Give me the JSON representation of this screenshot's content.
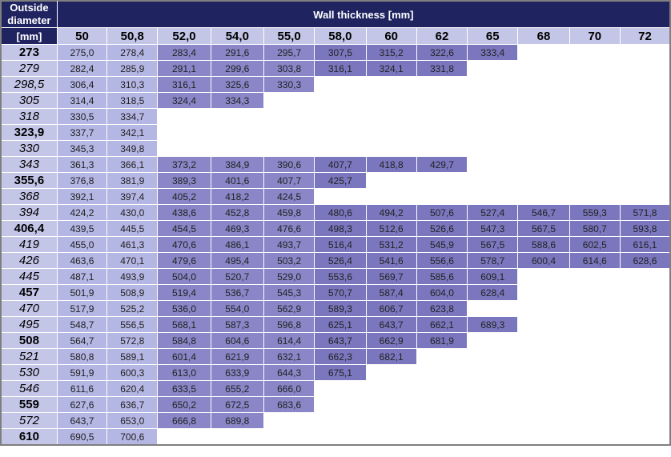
{
  "header": {
    "outside_diameter": [
      "Outside",
      "diameter"
    ],
    "wall_thickness": "Wall thickness [mm]",
    "unit": "[mm]"
  },
  "thicknesses": [
    "50",
    "50,8",
    "52,0",
    "54,0",
    "55,0",
    "58,0",
    "60",
    "62",
    "65",
    "68",
    "70",
    "72"
  ],
  "rows": [
    {
      "od": "273",
      "style": "bold",
      "values": [
        "275,0",
        "278,4",
        "283,4",
        "291,6",
        "295,7",
        "307,5",
        "315,2",
        "322,6",
        "333,4"
      ]
    },
    {
      "od": "279",
      "style": "ital",
      "values": [
        "282,4",
        "285,9",
        "291,1",
        "299,6",
        "303,8",
        "316,1",
        "324,1",
        "331,8"
      ]
    },
    {
      "od": "298,5",
      "style": "ital",
      "values": [
        "306,4",
        "310,3",
        "316,1",
        "325,6",
        "330,3"
      ]
    },
    {
      "od": "305",
      "style": "ital",
      "values": [
        "314,4",
        "318,5",
        "324,4",
        "334,3"
      ]
    },
    {
      "od": "318",
      "style": "ital",
      "values": [
        "330,5",
        "334,7"
      ]
    },
    {
      "od": "323,9",
      "style": "bold",
      "values": [
        "337,7",
        "342,1"
      ]
    },
    {
      "od": "330",
      "style": "ital",
      "values": [
        "345,3",
        "349,8"
      ]
    },
    {
      "od": "343",
      "style": "ital",
      "values": [
        "361,3",
        "366,1",
        "373,2",
        "384,9",
        "390,6",
        "407,7",
        "418,8",
        "429,7"
      ]
    },
    {
      "od": "355,6",
      "style": "bold",
      "values": [
        "376,8",
        "381,9",
        "389,3",
        "401,6",
        "407,7",
        "425,7"
      ]
    },
    {
      "od": "368",
      "style": "ital",
      "values": [
        "392,1",
        "397,4",
        "405,2",
        "418,2",
        "424,5"
      ]
    },
    {
      "od": "394",
      "style": "ital",
      "values": [
        "424,2",
        "430,0",
        "438,6",
        "452,8",
        "459,8",
        "480,6",
        "494,2",
        "507,6",
        "527,4",
        "546,7",
        "559,3",
        "571,8"
      ]
    },
    {
      "od": "406,4",
      "style": "bold",
      "values": [
        "439,5",
        "445,5",
        "454,5",
        "469,3",
        "476,6",
        "498,3",
        "512,6",
        "526,6",
        "547,3",
        "567,5",
        "580,7",
        "593,8"
      ]
    },
    {
      "od": "419",
      "style": "ital",
      "values": [
        "455,0",
        "461,3",
        "470,6",
        "486,1",
        "493,7",
        "516,4",
        "531,2",
        "545,9",
        "567,5",
        "588,6",
        "602,5",
        "616,1"
      ]
    },
    {
      "od": "426",
      "style": "ital",
      "values": [
        "463,6",
        "470,1",
        "479,6",
        "495,4",
        "503,2",
        "526,4",
        "541,6",
        "556,6",
        "578,7",
        "600,4",
        "614,6",
        "628,6"
      ]
    },
    {
      "od": "445",
      "style": "ital",
      "values": [
        "487,1",
        "493,9",
        "504,0",
        "520,7",
        "529,0",
        "553,6",
        "569,7",
        "585,6",
        "609,1"
      ]
    },
    {
      "od": "457",
      "style": "bold",
      "values": [
        "501,9",
        "508,9",
        "519,4",
        "536,7",
        "545,3",
        "570,7",
        "587,4",
        "604,0",
        "628,4"
      ]
    },
    {
      "od": "470",
      "style": "ital",
      "values": [
        "517,9",
        "525,2",
        "536,0",
        "554,0",
        "562,9",
        "589,3",
        "606,7",
        "623,8"
      ]
    },
    {
      "od": "495",
      "style": "ital",
      "values": [
        "548,7",
        "556,5",
        "568,1",
        "587,3",
        "596,8",
        "625,1",
        "643,7",
        "662,1",
        "689,3"
      ]
    },
    {
      "od": "508",
      "style": "bold",
      "values": [
        "564,7",
        "572,8",
        "584,8",
        "604,6",
        "614,4",
        "643,7",
        "662,9",
        "681,9"
      ]
    },
    {
      "od": "521",
      "style": "ital",
      "values": [
        "580,8",
        "589,1",
        "601,4",
        "621,9",
        "632,1",
        "662,3",
        "682,1"
      ]
    },
    {
      "od": "530",
      "style": "ital",
      "values": [
        "591,9",
        "600,3",
        "613,0",
        "633,9",
        "644,3",
        "675,1"
      ]
    },
    {
      "od": "546",
      "style": "ital",
      "values": [
        "611,6",
        "620,4",
        "633,5",
        "655,2",
        "666,0"
      ]
    },
    {
      "od": "559",
      "style": "bold",
      "values": [
        "627,6",
        "636,7",
        "650,2",
        "672,5",
        "683,6"
      ]
    },
    {
      "od": "572",
      "style": "ital",
      "values": [
        "643,7",
        "653,0",
        "666,8",
        "689,8"
      ]
    },
    {
      "od": "610",
      "style": "bold",
      "values": [
        "690,5",
        "700,6"
      ]
    }
  ],
  "colors": {
    "header_bg": "#1f2460",
    "subheader_bg": "#c4c6e8",
    "light_cell": "#b4b6e4",
    "dark_cell": "#8a86c8",
    "darker_cell": "#7b77bf",
    "empty_cell": "#ffffff"
  }
}
